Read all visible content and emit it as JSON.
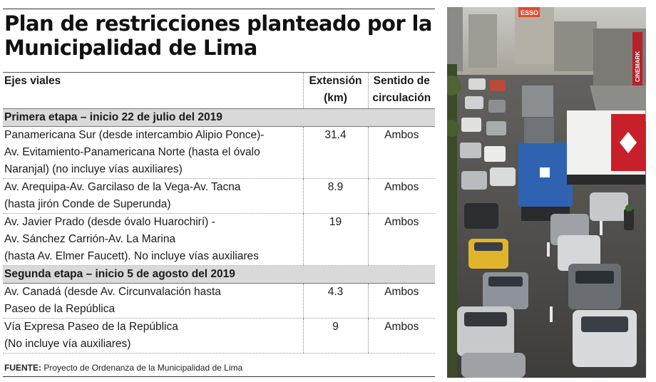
{
  "title": [
    "Plan de restricciones planteado por la",
    "Municipalidad de Lima"
  ],
  "table": {
    "headers": {
      "axis": "Ejes viales",
      "extension": [
        "Extensión",
        "(km)"
      ],
      "direction": [
        "Sentido de",
        "circulación"
      ]
    },
    "sections": [
      {
        "label": "Primera etapa – inicio 22 de julio del 2019",
        "rows": [
          {
            "axis": [
              "Panamericana Sur (desde intercambio Alipio Ponce)-",
              "Av. Evitamiento-Panamericana Norte (hasta el óvalo",
              "Naranjal) (no incluye vías auxiliares)"
            ],
            "km": "31.4",
            "direction": "Ambos"
          },
          {
            "axis": [
              "Av. Arequipa-Av. Garcilaso de la Vega-Av. Tacna",
              "(hasta jirón Conde de Superunda)"
            ],
            "km": "8.9",
            "direction": "Ambos"
          },
          {
            "axis": [
              "Av. Javier Prado (desde óvalo Huarochirí) -",
              "Av. Sánchez Carrión-Av. La Marina",
              "(hasta Av. Elmer Faucett). No incluye vías auxiliares"
            ],
            "km": "19",
            "direction": "Ambos"
          }
        ]
      },
      {
        "label": "Segunda etapa – inicio 5 de agosto del 2019",
        "rows": [
          {
            "axis": [
              "Av. Canadá (desde Av. Circunvalación hasta",
              "Paseo de la República"
            ],
            "km": "4.3",
            "direction": "Ambos"
          },
          {
            "axis": [
              "Vía Expresa Paseo de la República",
              "(No incluye vía auxiliares)"
            ],
            "km": "9",
            "direction": "Ambos"
          }
        ]
      }
    ]
  },
  "source": {
    "label": "FUENTE:",
    "text": "Proyecto de Ordenanza de la Municipalidad de Lima"
  },
  "photo": {
    "billboard_text": "CINEMARK",
    "sign_text": "ESSO"
  }
}
